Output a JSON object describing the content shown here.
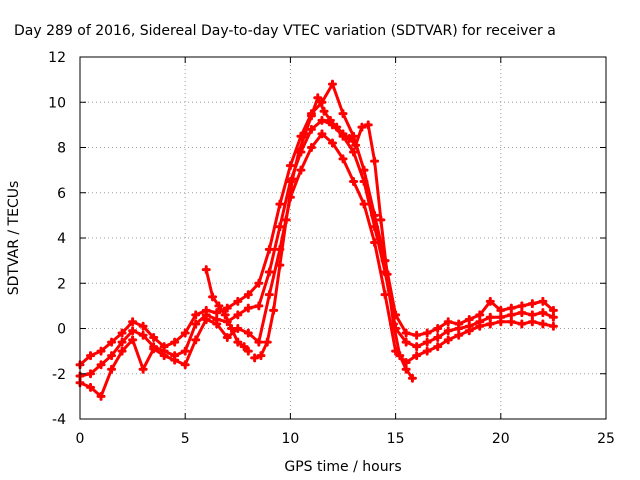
{
  "chart_data": {
    "type": "scatter",
    "title": "Day 289 of 2016, Sidereal Day-to-day VTEC variation (SDTVAR) for receiver a",
    "xlabel": "GPS time / hours",
    "ylabel": "SDTVAR / TECUs",
    "xlim": [
      0,
      25
    ],
    "ylim": [
      -4,
      12
    ],
    "xticks": [
      0,
      5,
      10,
      15,
      20,
      25
    ],
    "yticks": [
      -4,
      -2,
      0,
      2,
      4,
      6,
      8,
      10,
      12
    ],
    "grid": true,
    "marker": "+",
    "color": "#ff0000",
    "series": [
      {
        "x": [
          0,
          0.5,
          1,
          1.5,
          2,
          2.5,
          3,
          3.5,
          4,
          4.5,
          5,
          5.5,
          6,
          6.5,
          7,
          7.5,
          8,
          8.5,
          9,
          9.5,
          10,
          10.5,
          11,
          11.5,
          12,
          12.5,
          13,
          13.5,
          14,
          14.5,
          15,
          15.5,
          16,
          16.5,
          17,
          17.5,
          18,
          18.5,
          19,
          19.5,
          20,
          20.5,
          21,
          21.5,
          22,
          22.5
        ],
        "y": [
          -1.6,
          -1.2,
          -1.0,
          -0.6,
          -0.2,
          0.3,
          0.1,
          -0.4,
          -0.8,
          -0.6,
          -0.2,
          0.6,
          0.8,
          0.7,
          0.9,
          1.2,
          1.5,
          2.0,
          3.5,
          5.5,
          7.2,
          8.5,
          9.5,
          10.0,
          10.8,
          9.5,
          8.5,
          7.0,
          5.0,
          3.0,
          0.6,
          -0.2,
          -0.3,
          -0.2,
          0.0,
          0.3,
          0.2,
          0.4,
          0.6,
          1.2,
          0.8,
          0.9,
          1.0,
          1.1,
          1.2,
          0.8
        ]
      },
      {
        "x": [
          0,
          0.5,
          1,
          1.5,
          2,
          2.5,
          3,
          3.5,
          4,
          4.5,
          5,
          5.5,
          6,
          6.5,
          7,
          7.5,
          8,
          8.5,
          9,
          9.5,
          10,
          10.5,
          11,
          11.5,
          12,
          12.5,
          13,
          13.5,
          14,
          14.5,
          15,
          15.5,
          16,
          16.5,
          17,
          17.5,
          18,
          18.5,
          19,
          19.5,
          20,
          20.5,
          21,
          21.5,
          22,
          22.5
        ],
        "y": [
          -2.1,
          -2.0,
          -1.6,
          -1.2,
          -0.6,
          -0.1,
          -0.3,
          -0.8,
          -1.0,
          -1.2,
          -1.0,
          0.2,
          0.6,
          0.4,
          0.3,
          0.6,
          0.9,
          1.0,
          2.5,
          4.5,
          6.5,
          7.8,
          8.8,
          9.2,
          9.0,
          8.5,
          7.8,
          6.5,
          4.5,
          2.5,
          0.0,
          -0.6,
          -0.8,
          -0.6,
          -0.4,
          -0.1,
          0.0,
          0.1,
          0.3,
          0.5,
          0.5,
          0.6,
          0.7,
          0.6,
          0.7,
          0.5
        ]
      },
      {
        "x": [
          0,
          0.5,
          1,
          1.5,
          2,
          2.5,
          3,
          3.5,
          4,
          4.5,
          5,
          5.5,
          6,
          6.5,
          7,
          7.5,
          8,
          8.5,
          9,
          9.5,
          10,
          10.5,
          11,
          11.5,
          12,
          12.5,
          13,
          13.5,
          14,
          14.5,
          15,
          15.5,
          16,
          16.5,
          17,
          17.5,
          18,
          18.5,
          19,
          19.5,
          20,
          20.5,
          21,
          21.5,
          22,
          22.5
        ],
        "y": [
          -2.4,
          -2.6,
          -3.0,
          -1.8,
          -1.0,
          -0.5,
          -1.8,
          -0.9,
          -1.2,
          -1.4,
          -1.6,
          -0.5,
          0.4,
          0.2,
          -0.4,
          0.0,
          -0.2,
          -0.6,
          1.5,
          3.5,
          5.8,
          7.0,
          8.0,
          8.6,
          8.2,
          7.5,
          6.5,
          5.5,
          3.8,
          1.5,
          -1.0,
          -1.5,
          -1.2,
          -1.0,
          -0.8,
          -0.5,
          -0.3,
          -0.1,
          0.1,
          0.2,
          0.3,
          0.3,
          0.2,
          0.3,
          0.2,
          0.1
        ]
      },
      {
        "x": [
          6.0,
          6.3,
          6.6,
          6.9,
          7.2,
          7.5,
          7.8,
          8.0
        ],
        "y": [
          2.6,
          1.4,
          1.0,
          0.6,
          0.0,
          -0.6,
          -0.8,
          -1.0
        ]
      },
      {
        "x": [
          8.3,
          8.6,
          8.9,
          9.2,
          9.5,
          9.8,
          10.1,
          10.4,
          10.7,
          11.0,
          11.3,
          11.6,
          11.9,
          12.2,
          12.5,
          12.8,
          13.1,
          13.4,
          13.7,
          14.0,
          14.3,
          14.6,
          14.9,
          15.2,
          15.5,
          15.8
        ],
        "y": [
          -1.3,
          -1.2,
          -0.6,
          0.8,
          2.8,
          4.8,
          6.6,
          7.8,
          8.6,
          9.4,
          10.2,
          9.6,
          9.2,
          8.9,
          8.6,
          8.4,
          8.1,
          8.9,
          9.0,
          7.4,
          4.8,
          2.4,
          0.2,
          -1.2,
          -1.8,
          -2.2
        ]
      }
    ]
  }
}
